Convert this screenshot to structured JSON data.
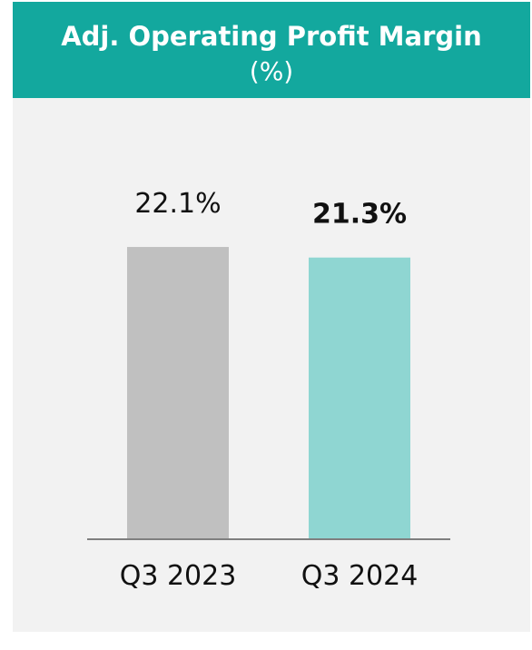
{
  "header": {
    "title": "Adj. Operating Profit Margin",
    "subtitle": "(%)",
    "color": "#13a89e"
  },
  "chart_data": {
    "type": "bar",
    "title": "Adj. Operating Profit Margin",
    "subtitle": "(%)",
    "xlabel": "",
    "ylabel": "",
    "ylim": [
      0,
      24.3
    ],
    "grid": false,
    "categories": [
      "Q3 2023",
      "Q3 2024"
    ],
    "values": [
      22.1,
      21.3
    ],
    "data_labels": [
      "22.1%",
      "21.3%"
    ],
    "bar_colors": [
      "#c0c0c0",
      "#8fd6d2"
    ],
    "label_bold": [
      false,
      true
    ]
  }
}
